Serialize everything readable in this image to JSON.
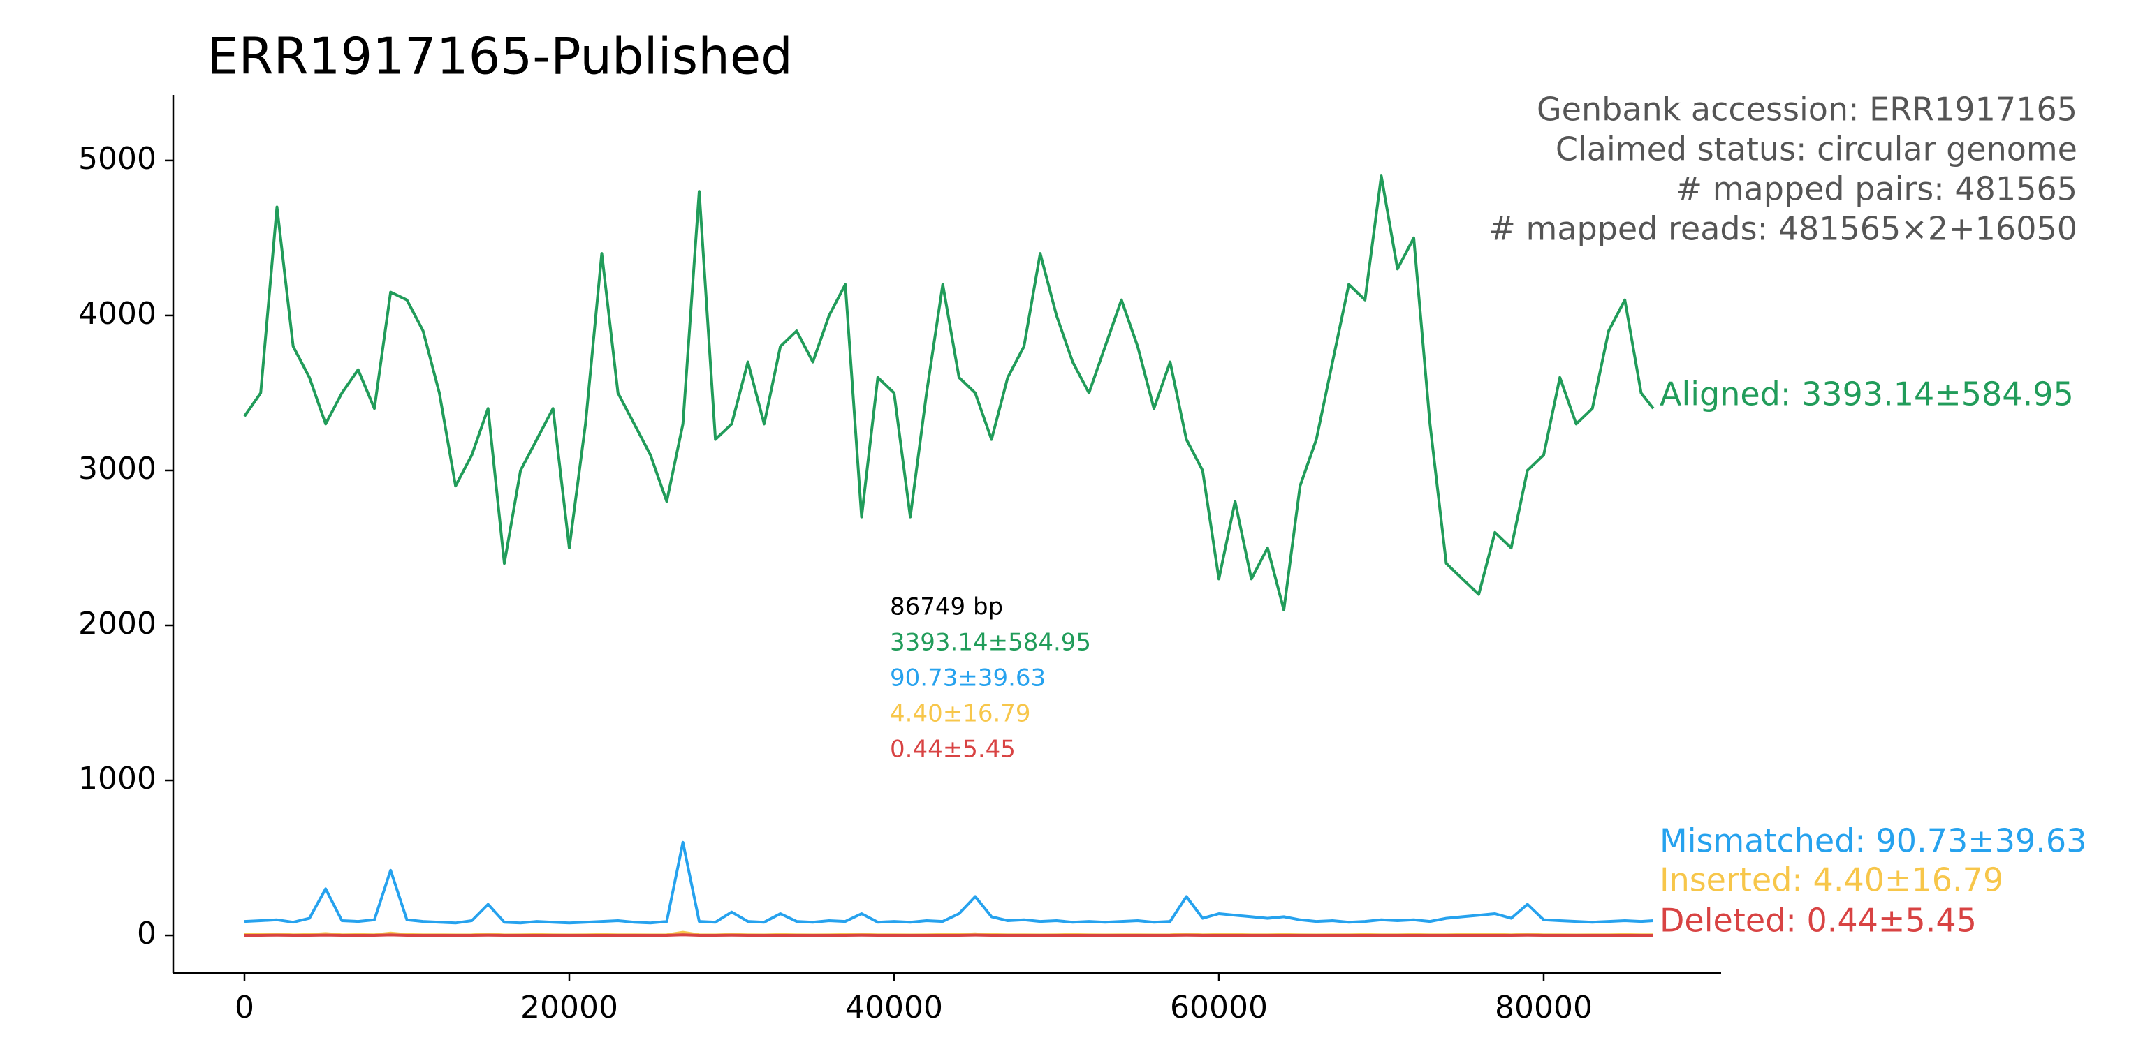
{
  "chart_data": {
    "type": "line",
    "title": "ERR1917165-Published",
    "annotations": [
      "Genbank accession: ERR1917165",
      "Claimed status: circular genome",
      "# mapped pairs: 481565",
      "# mapped reads: 481565×2+16050"
    ],
    "length_label": "86749 bp",
    "x": [
      0,
      1000,
      2000,
      3000,
      4000,
      5000,
      6000,
      7000,
      8000,
      9000,
      10000,
      11000,
      12000,
      13000,
      14000,
      15000,
      16000,
      17000,
      18000,
      19000,
      20000,
      21000,
      22000,
      23000,
      24000,
      25000,
      26000,
      27000,
      28000,
      29000,
      30000,
      31000,
      32000,
      33000,
      34000,
      35000,
      36000,
      37000,
      38000,
      39000,
      40000,
      41000,
      42000,
      43000,
      44000,
      45000,
      46000,
      47000,
      48000,
      49000,
      50000,
      51000,
      52000,
      53000,
      54000,
      55000,
      56000,
      57000,
      58000,
      59000,
      60000,
      61000,
      62000,
      63000,
      64000,
      65000,
      66000,
      67000,
      68000,
      69000,
      70000,
      71000,
      72000,
      73000,
      74000,
      75000,
      76000,
      77000,
      78000,
      79000,
      80000,
      81000,
      82000,
      83000,
      84000,
      85000,
      86000,
      86749
    ],
    "xlim": [
      -4387,
      90925
    ],
    "ylim": [
      -243,
      5423
    ],
    "xticks": [
      0,
      20000,
      40000,
      60000,
      80000
    ],
    "yticks": [
      0,
      1000,
      2000,
      3000,
      4000,
      5000
    ],
    "grid": false,
    "series": [
      {
        "name": "Aligned: 3393.14±584.95",
        "summary": "3393.14±584.95",
        "color": "#219c5a",
        "values": [
          3350,
          3500,
          4700,
          3800,
          3600,
          3300,
          3500,
          3650,
          3400,
          4150,
          4100,
          3900,
          3500,
          2900,
          3100,
          3400,
          2400,
          3000,
          3200,
          3400,
          2500,
          3300,
          4400,
          3500,
          3300,
          3100,
          2800,
          3300,
          4800,
          3200,
          3300,
          3700,
          3300,
          3800,
          3900,
          3700,
          4000,
          4200,
          2700,
          3600,
          3500,
          2700,
          3500,
          4200,
          3600,
          3500,
          3200,
          3600,
          3800,
          4400,
          4000,
          3700,
          3500,
          3800,
          4100,
          3800,
          3400,
          3700,
          3200,
          3000,
          2300,
          2800,
          2300,
          2500,
          2100,
          2900,
          3200,
          3700,
          4200,
          4100,
          4900,
          4300,
          4500,
          3300,
          2400,
          2300,
          2200,
          2600,
          2500,
          3000,
          3100,
          3600,
          3300,
          3400,
          3900,
          4100,
          3500,
          3400
        ]
      },
      {
        "name": "Mismatched: 90.73±39.63",
        "summary": "90.73±39.63",
        "color": "#26a2ee",
        "values": [
          90,
          95,
          100,
          85,
          110,
          300,
          95,
          90,
          100,
          420,
          100,
          90,
          85,
          80,
          95,
          200,
          85,
          80,
          90,
          85,
          80,
          85,
          90,
          95,
          85,
          80,
          90,
          600,
          90,
          85,
          150,
          90,
          85,
          140,
          90,
          85,
          95,
          90,
          140,
          85,
          90,
          85,
          95,
          90,
          140,
          250,
          120,
          95,
          100,
          90,
          95,
          85,
          90,
          85,
          90,
          95,
          85,
          90,
          250,
          110,
          140,
          130,
          120,
          110,
          120,
          100,
          90,
          95,
          85,
          90,
          100,
          95,
          100,
          90,
          110,
          120,
          130,
          140,
          110,
          200,
          100,
          95,
          90,
          85,
          90,
          95,
          90,
          95
        ]
      },
      {
        "name": "Inserted: 4.40±16.79",
        "summary": "4.40±16.79",
        "color": "#f7c64a",
        "values": [
          5,
          6,
          8,
          4,
          5,
          12,
          4,
          5,
          4,
          15,
          5,
          4,
          4,
          3,
          4,
          8,
          3,
          4,
          5,
          4,
          3,
          4,
          5,
          4,
          4,
          3,
          4,
          20,
          4,
          3,
          6,
          4,
          3,
          5,
          4,
          3,
          4,
          5,
          6,
          4,
          4,
          3,
          4,
          5,
          6,
          10,
          5,
          4,
          4,
          3,
          4,
          5,
          4,
          3,
          4,
          4,
          3,
          4,
          8,
          4,
          5,
          5,
          4,
          4,
          5,
          4,
          3,
          4,
          4,
          5,
          4,
          4,
          5,
          4,
          4,
          5,
          5,
          6,
          4,
          7,
          4,
          4,
          3,
          4,
          4,
          5,
          4,
          4
        ]
      },
      {
        "name": "Deleted: 0.44±5.45",
        "summary": "0.44±5.45",
        "color": "#d84343",
        "values": [
          0,
          0,
          1,
          0,
          0,
          2,
          0,
          0,
          0,
          3,
          0,
          0,
          0,
          0,
          0,
          1,
          0,
          0,
          0,
          0,
          0,
          0,
          0,
          0,
          0,
          0,
          0,
          4,
          0,
          0,
          1,
          0,
          0,
          0,
          0,
          0,
          0,
          0,
          1,
          0,
          0,
          0,
          0,
          0,
          0,
          2,
          0,
          0,
          0,
          0,
          0,
          0,
          0,
          0,
          0,
          0,
          0,
          0,
          1,
          0,
          0,
          0,
          0,
          0,
          0,
          0,
          0,
          0,
          0,
          0,
          0,
          0,
          0,
          0,
          0,
          0,
          0,
          0,
          0,
          1,
          0,
          0,
          0,
          0,
          0,
          0,
          0,
          0
        ]
      }
    ]
  }
}
